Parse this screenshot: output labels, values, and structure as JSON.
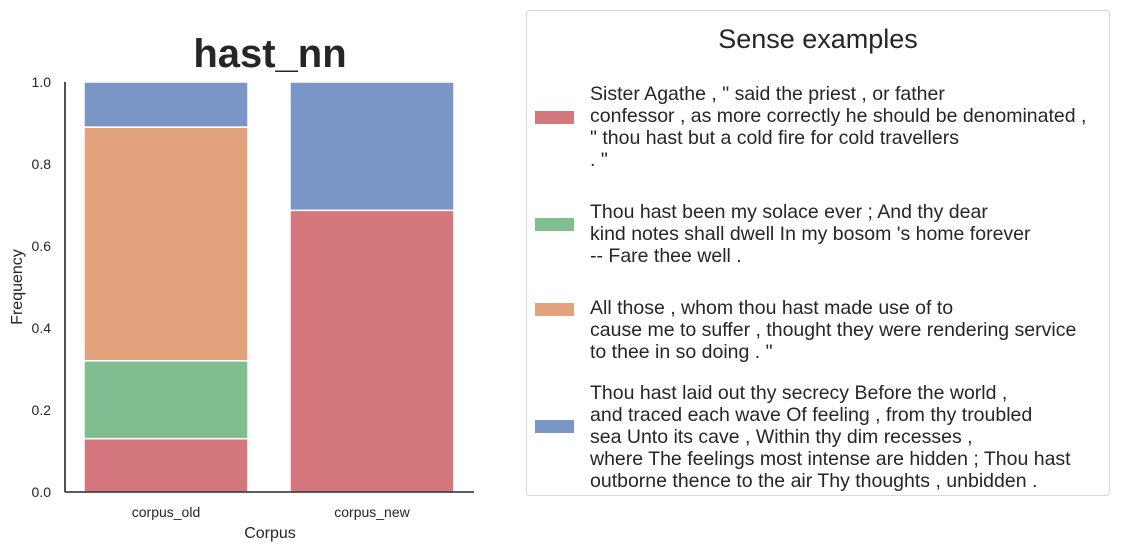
{
  "chart_data": {
    "type": "bar",
    "stacked": true,
    "title": "hast_nn",
    "xlabel": "Corpus",
    "ylabel": "Frequency",
    "ylim": [
      0,
      1.0
    ],
    "yticks": [
      "0.0",
      "0.2",
      "0.4",
      "0.6",
      "0.8",
      "1.0"
    ],
    "categories": [
      "corpus_old",
      "corpus_new"
    ],
    "series": [
      {
        "color": "#d3777c",
        "values": [
          0.13,
          0.687
        ]
      },
      {
        "color": "#80bd8f",
        "values": [
          0.19,
          0.0
        ]
      },
      {
        "color": "#e2a37c",
        "values": [
          0.57,
          0.0
        ]
      },
      {
        "color": "#7996c6",
        "values": [
          0.11,
          0.313
        ]
      }
    ],
    "legend": {
      "title": "Sense examples",
      "placement": "right",
      "entries": [
        {
          "color": "#d3777c",
          "text": "Sister Agathe , \" said the priest , or father\nconfessor , as more correctly he should be denominated ,\n\" thou hast but a cold fire for cold travellers\n. \""
        },
        {
          "color": "#80bd8f",
          "text": "Thou hast been my solace ever ; And thy dear\nkind notes shall dwell In my bosom 's home forever\n-- Fare thee well ."
        },
        {
          "color": "#e2a37c",
          "text": "All those , whom thou hast made use of to\ncause me to suffer , thought they were rendering service\nto thee in so doing . \""
        },
        {
          "color": "#7996c6",
          "text": "Thou hast laid out thy secrecy Before the world ,\nand traced each wave Of feeling , from thy troubled\nsea Unto its cave , Within thy dim recesses ,\nwhere The feelings most intense are hidden ; Thou hast\noutborne thence to the air Thy thoughts , unbidden ."
        }
      ]
    }
  }
}
